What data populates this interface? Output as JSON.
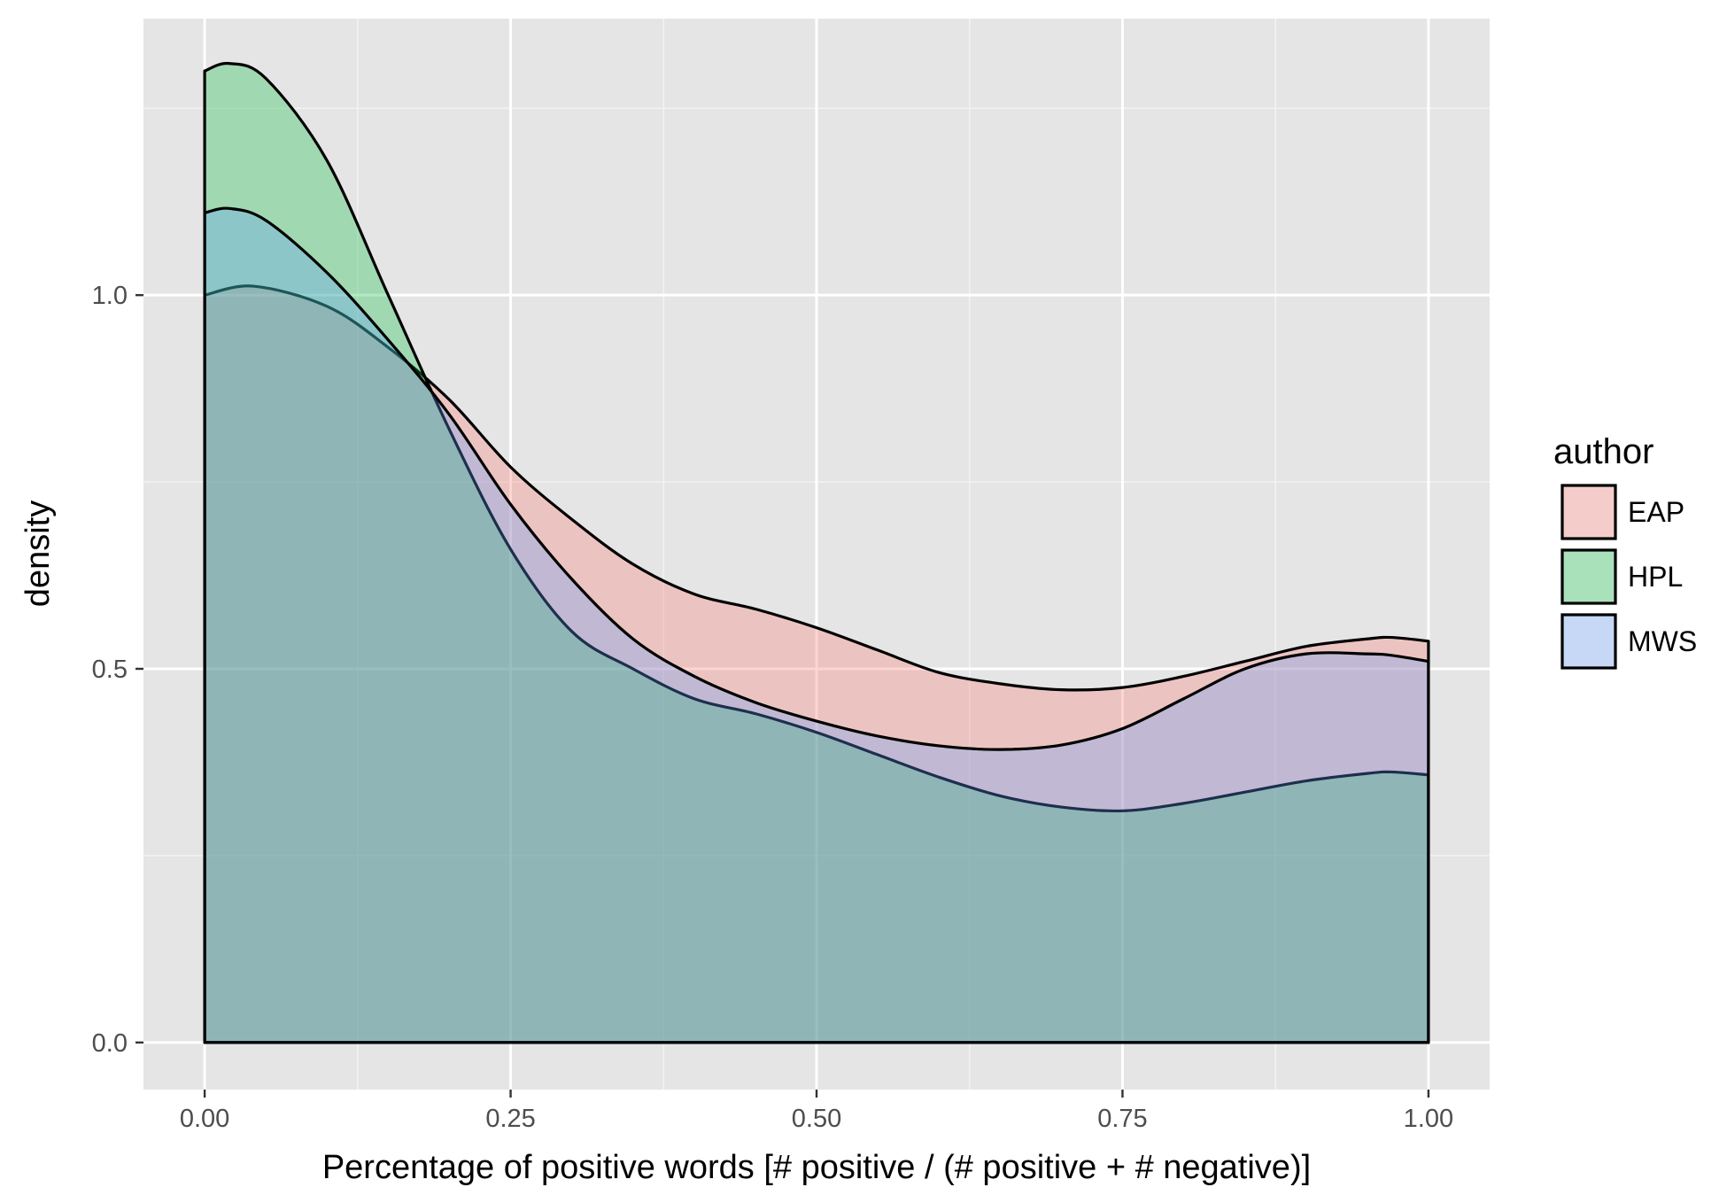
{
  "chart_data": {
    "type": "area",
    "title": "",
    "xlabel": "Percentage of positive words [# positive / (# positive + # negative)]",
    "ylabel": "density",
    "xlim": [
      -0.05,
      1.05
    ],
    "ylim": [
      -0.063,
      1.37
    ],
    "x_ticks": [
      0,
      0.25,
      0.5,
      0.75,
      1
    ],
    "x_tick_labels": [
      "0.00",
      "0.25",
      "0.50",
      "0.75",
      "1.00"
    ],
    "y_ticks": [
      0,
      0.5,
      1
    ],
    "y_tick_labels": [
      "0.0",
      "0.5",
      "1.0"
    ],
    "grid": true,
    "panel_background": "#e5e5e5",
    "legend": {
      "title": "author",
      "position": "right"
    },
    "series": [
      {
        "name": "EAP",
        "color": "#f8766d",
        "x": [
          0,
          0.04,
          0.1,
          0.15,
          0.2,
          0.25,
          0.3,
          0.35,
          0.4,
          0.45,
          0.5,
          0.55,
          0.6,
          0.65,
          0.7,
          0.75,
          0.8,
          0.85,
          0.9,
          0.95,
          0.97,
          1
        ],
        "y": [
          1.0,
          1.012,
          0.985,
          0.93,
          0.86,
          0.77,
          0.7,
          0.64,
          0.6,
          0.58,
          0.555,
          0.525,
          0.495,
          0.48,
          0.472,
          0.475,
          0.49,
          0.51,
          0.53,
          0.54,
          0.542,
          0.537
        ]
      },
      {
        "name": "HPL",
        "color": "#00ba38",
        "x": [
          0,
          0.02,
          0.05,
          0.1,
          0.15,
          0.2,
          0.25,
          0.3,
          0.35,
          0.4,
          0.45,
          0.5,
          0.55,
          0.6,
          0.65,
          0.7,
          0.75,
          0.8,
          0.85,
          0.9,
          0.95,
          0.97,
          1
        ],
        "y": [
          1.3,
          1.31,
          1.29,
          1.18,
          1.0,
          0.82,
          0.66,
          0.55,
          0.5,
          0.46,
          0.44,
          0.415,
          0.385,
          0.355,
          0.33,
          0.315,
          0.31,
          0.32,
          0.335,
          0.35,
          0.36,
          0.362,
          0.358
        ]
      },
      {
        "name": "MWS",
        "color": "#619cff",
        "x": [
          0,
          0.02,
          0.05,
          0.1,
          0.15,
          0.2,
          0.25,
          0.3,
          0.35,
          0.4,
          0.45,
          0.5,
          0.55,
          0.6,
          0.65,
          0.7,
          0.75,
          0.8,
          0.85,
          0.9,
          0.95,
          0.97,
          1
        ],
        "y": [
          1.11,
          1.116,
          1.1,
          1.03,
          0.94,
          0.84,
          0.72,
          0.62,
          0.54,
          0.49,
          0.455,
          0.43,
          0.41,
          0.397,
          0.392,
          0.398,
          0.42,
          0.46,
          0.5,
          0.52,
          0.52,
          0.518,
          0.51
        ]
      }
    ]
  }
}
